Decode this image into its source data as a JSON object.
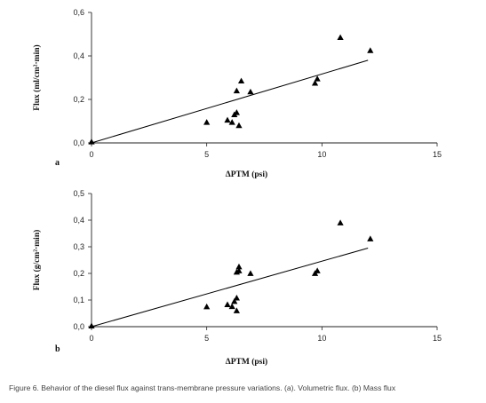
{
  "caption": "Figure 6. Behavior of the diesel flux against trans-membrane pressure variations. (a). Volumetric flux. (b) Mass flux",
  "colors": {
    "axis": "#222222",
    "marker": "#000000",
    "trend": "#000000"
  },
  "chart_data": [
    {
      "type": "scatter",
      "panel_label": "a",
      "xlabel": "ΔPTM (psi)",
      "ylabel": "Flux (ml/cm²·min)",
      "xlim": [
        0,
        15
      ],
      "ylim": [
        0,
        0.6
      ],
      "x_ticks": [
        "0",
        "5",
        "10",
        "15"
      ],
      "y_ticks": [
        "0,0",
        "0,2",
        "0,4",
        "0,6"
      ],
      "grid": false,
      "marker": "triangle",
      "x": [
        0,
        5,
        5.9,
        6.1,
        6.2,
        6.3,
        6.3,
        6.4,
        6.5,
        6.9,
        9.7,
        9.8,
        10.8,
        12.1
      ],
      "y": [
        0.005,
        0.095,
        0.105,
        0.095,
        0.13,
        0.14,
        0.24,
        0.08,
        0.285,
        0.235,
        0.275,
        0.295,
        0.485,
        0.425
      ],
      "trendline": {
        "x": [
          0,
          12
        ],
        "y": [
          0,
          0.38
        ]
      }
    },
    {
      "type": "scatter",
      "panel_label": "b",
      "xlabel": "ΔPTM (psi)",
      "ylabel": "Flux (g/cm²·min)",
      "xlim": [
        0,
        15
      ],
      "ylim": [
        0,
        0.5
      ],
      "x_ticks": [
        "0",
        "5",
        "10",
        "15"
      ],
      "y_ticks": [
        "0,0",
        "0,1",
        "0,2",
        "0,3",
        "0,4",
        "0,5"
      ],
      "grid": false,
      "marker": "triangle",
      "x": [
        0,
        5,
        5.9,
        6.1,
        6.2,
        6.3,
        6.3,
        6.3,
        6.4,
        6.4,
        6.9,
        9.7,
        9.8,
        10.8,
        12.1
      ],
      "y": [
        0.003,
        0.075,
        0.083,
        0.076,
        0.095,
        0.108,
        0.06,
        0.205,
        0.225,
        0.21,
        0.2,
        0.2,
        0.21,
        0.39,
        0.33
      ],
      "trendline": {
        "x": [
          0,
          12
        ],
        "y": [
          0,
          0.295
        ]
      }
    }
  ]
}
